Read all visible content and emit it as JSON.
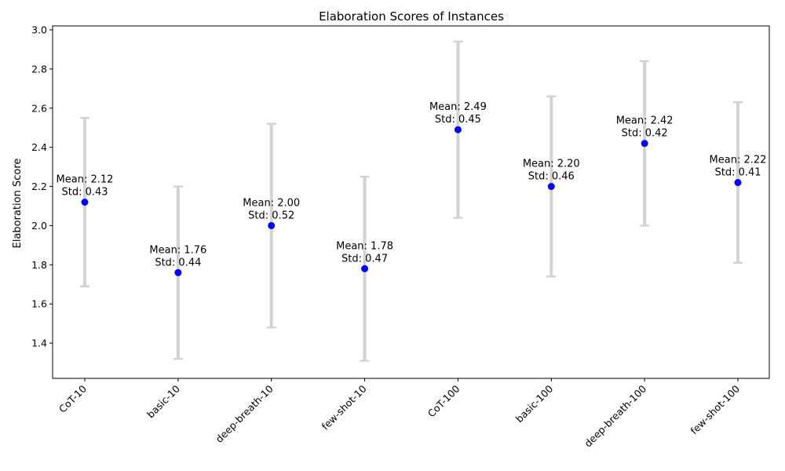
{
  "chart_data": {
    "type": "scatter",
    "title": "Elaboration Scores of Instances",
    "xlabel": "",
    "ylabel": "Elaboration Score",
    "categories": [
      "CoT-10",
      "basic-10",
      "deep-breath-10",
      "few-shot-10",
      "CoT-100",
      "basic-100",
      "deep-breath-100",
      "few-shot-100"
    ],
    "means": [
      2.12,
      1.76,
      2.0,
      1.78,
      2.49,
      2.2,
      2.42,
      2.22
    ],
    "stds": [
      0.43,
      0.44,
      0.52,
      0.47,
      0.45,
      0.46,
      0.42,
      0.41
    ],
    "annotations": [
      {
        "mean": "Mean: 2.12",
        "std": "Std: 0.43"
      },
      {
        "mean": "Mean: 1.76",
        "std": "Std: 0.44"
      },
      {
        "mean": "Mean: 2.00",
        "std": "Std: 0.52"
      },
      {
        "mean": "Mean: 1.78",
        "std": "Std: 0.47"
      },
      {
        "mean": "Mean: 2.49",
        "std": "Std: 0.45"
      },
      {
        "mean": "Mean: 2.20",
        "std": "Std: 0.46"
      },
      {
        "mean": "Mean: 2.42",
        "std": "Std: 0.42"
      },
      {
        "mean": "Mean: 2.22",
        "std": "Std: 0.41"
      }
    ],
    "yticks": [
      "1.4",
      "1.6",
      "1.8",
      "2.0",
      "2.2",
      "2.4",
      "2.6",
      "2.8",
      "3.0"
    ],
    "ylim": [
      1.22,
      3.02
    ],
    "grid": false,
    "legend": false,
    "colors": {
      "marker": "#0000ff",
      "errorbar": "#d3d3d3",
      "axis": "#000000"
    }
  }
}
